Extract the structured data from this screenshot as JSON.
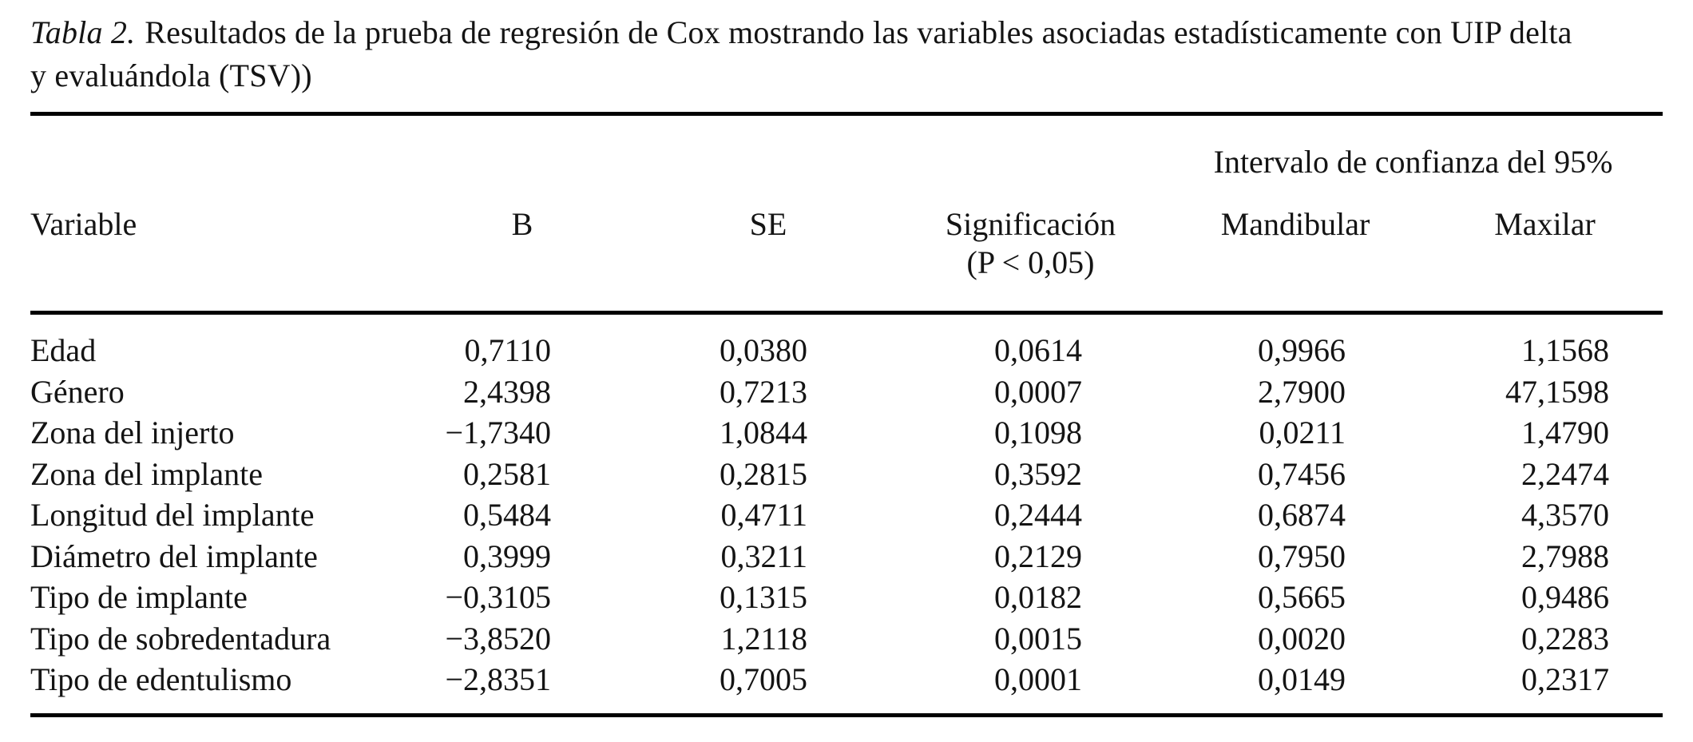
{
  "caption": {
    "label": "Tabla 2.",
    "line1": "Resultados de la prueba de regresión de Cox mostrando las variables asociadas estadísticamente con UIP delta",
    "line2": "y evaluándola (TSV))"
  },
  "table": {
    "ci_header": "Intervalo de confianza del 95%",
    "columns": {
      "variable": "Variable",
      "b": "B",
      "se": "SE",
      "sig": "Significación",
      "sig_sub": "(P < 0,05)",
      "mandibular": "Mandibular",
      "maxilar": "Maxilar"
    },
    "rows": [
      {
        "variable": "Edad",
        "b": "0,7110",
        "se": "0,0380",
        "sig": "0,0614",
        "mandibular": "0,9966",
        "maxilar": "1,1568"
      },
      {
        "variable": "Género",
        "b": "2,4398",
        "se": "0,7213",
        "sig": "0,0007",
        "mandibular": "2,7900",
        "maxilar": "47,1598"
      },
      {
        "variable": "Zona del injerto",
        "b": "−1,7340",
        "se": "1,0844",
        "sig": "0,1098",
        "mandibular": "0,0211",
        "maxilar": "1,4790"
      },
      {
        "variable": "Zona del implante",
        "b": "0,2581",
        "se": "0,2815",
        "sig": "0,3592",
        "mandibular": "0,7456",
        "maxilar": "2,2474"
      },
      {
        "variable": "Longitud del implante",
        "b": "0,5484",
        "se": "0,4711",
        "sig": "0,2444",
        "mandibular": "0,6874",
        "maxilar": "4,3570"
      },
      {
        "variable": "Diámetro del implante",
        "b": "0,3999",
        "se": "0,3211",
        "sig": "0,2129",
        "mandibular": "0,7950",
        "maxilar": "2,7988"
      },
      {
        "variable": "Tipo de implante",
        "b": "−0,3105",
        "se": "0,1315",
        "sig": "0,0182",
        "mandibular": "0,5665",
        "maxilar": "0,9486"
      },
      {
        "variable": "Tipo de sobredentadura",
        "b": "−3,8520",
        "se": "1,2118",
        "sig": "0,0015",
        "mandibular": "0,0020",
        "maxilar": "0,2283"
      },
      {
        "variable": "Tipo de edentulismo",
        "b": "−2,8351",
        "se": "0,7005",
        "sig": "0,0001",
        "mandibular": "0,0149",
        "maxilar": "0,2317"
      }
    ]
  },
  "colors": {
    "background": "#ffffff",
    "text": "#141414",
    "rule": "#000000"
  }
}
